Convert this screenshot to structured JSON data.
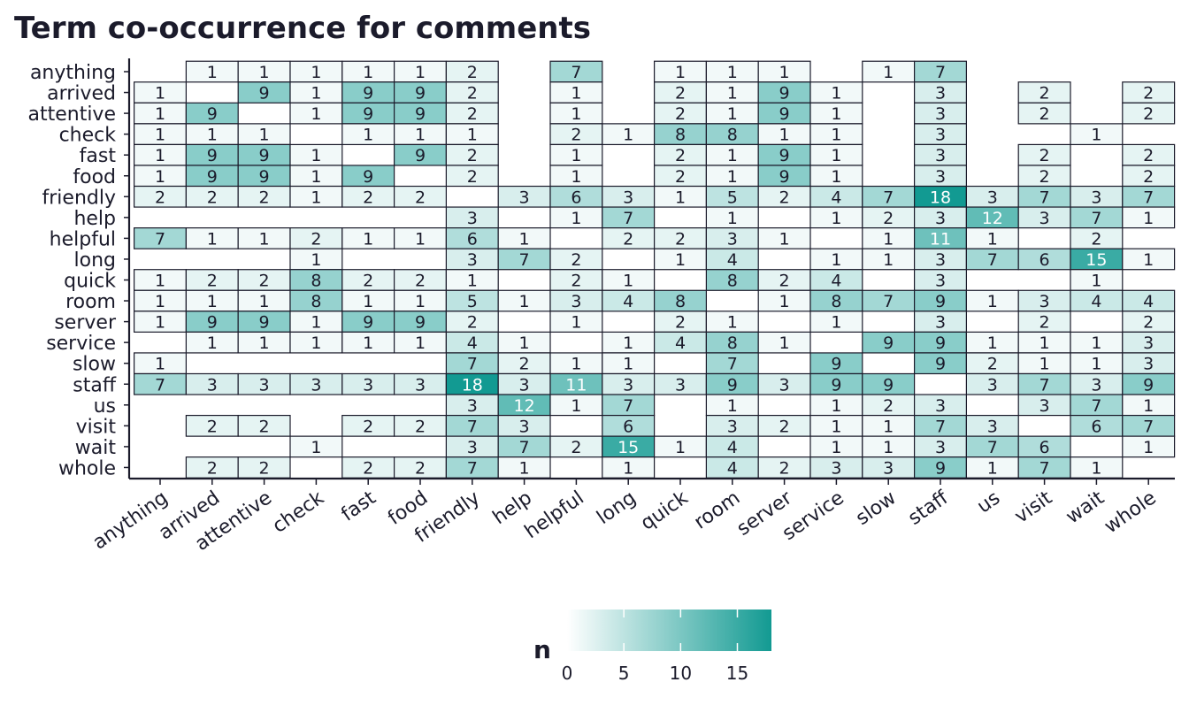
{
  "chart_data": {
    "type": "heatmap",
    "title": "Term co-occurrence for comments",
    "xlabel": "",
    "ylabel": "",
    "terms": [
      "anything",
      "arrived",
      "attentive",
      "check",
      "fast",
      "food",
      "friendly",
      "help",
      "helpful",
      "long",
      "quick",
      "room",
      "server",
      "service",
      "slow",
      "staff",
      "us",
      "visit",
      "wait",
      "whole"
    ],
    "matrix": [
      [
        null,
        1,
        1,
        1,
        1,
        1,
        2,
        null,
        7,
        null,
        1,
        1,
        1,
        null,
        1,
        7,
        null,
        null,
        null,
        null
      ],
      [
        1,
        null,
        9,
        1,
        9,
        9,
        2,
        null,
        1,
        null,
        2,
        1,
        9,
        1,
        null,
        3,
        null,
        2,
        null,
        2
      ],
      [
        1,
        9,
        null,
        1,
        9,
        9,
        2,
        null,
        1,
        null,
        2,
        1,
        9,
        1,
        null,
        3,
        null,
        2,
        null,
        2
      ],
      [
        1,
        1,
        1,
        null,
        1,
        1,
        1,
        null,
        2,
        1,
        8,
        8,
        1,
        1,
        null,
        3,
        null,
        null,
        1,
        null
      ],
      [
        1,
        9,
        9,
        1,
        null,
        9,
        2,
        null,
        1,
        null,
        2,
        1,
        9,
        1,
        null,
        3,
        null,
        2,
        null,
        2
      ],
      [
        1,
        9,
        9,
        1,
        9,
        null,
        2,
        null,
        1,
        null,
        2,
        1,
        9,
        1,
        null,
        3,
        null,
        2,
        null,
        2
      ],
      [
        2,
        2,
        2,
        1,
        2,
        2,
        null,
        3,
        6,
        3,
        1,
        5,
        2,
        4,
        7,
        18,
        3,
        7,
        3,
        7
      ],
      [
        null,
        null,
        null,
        null,
        null,
        null,
        3,
        null,
        1,
        7,
        null,
        1,
        null,
        1,
        2,
        3,
        12,
        3,
        7,
        1
      ],
      [
        7,
        1,
        1,
        2,
        1,
        1,
        6,
        1,
        null,
        2,
        2,
        3,
        1,
        null,
        1,
        11,
        1,
        null,
        2,
        null
      ],
      [
        null,
        null,
        null,
        1,
        null,
        null,
        3,
        7,
        2,
        null,
        1,
        4,
        null,
        1,
        1,
        3,
        7,
        6,
        15,
        1
      ],
      [
        1,
        2,
        2,
        8,
        2,
        2,
        1,
        null,
        2,
        1,
        null,
        8,
        2,
        4,
        null,
        3,
        null,
        null,
        1,
        null
      ],
      [
        1,
        1,
        1,
        8,
        1,
        1,
        5,
        1,
        3,
        4,
        8,
        null,
        1,
        8,
        7,
        9,
        1,
        3,
        4,
        4
      ],
      [
        1,
        9,
        9,
        1,
        9,
        9,
        2,
        null,
        1,
        null,
        2,
        1,
        null,
        1,
        null,
        3,
        null,
        2,
        null,
        2
      ],
      [
        null,
        1,
        1,
        1,
        1,
        1,
        4,
        1,
        null,
        1,
        4,
        8,
        1,
        null,
        9,
        9,
        1,
        1,
        1,
        3
      ],
      [
        1,
        null,
        null,
        null,
        null,
        null,
        7,
        2,
        1,
        1,
        null,
        7,
        null,
        9,
        null,
        9,
        2,
        1,
        1,
        3
      ],
      [
        7,
        3,
        3,
        3,
        3,
        3,
        18,
        3,
        11,
        3,
        3,
        9,
        3,
        9,
        9,
        null,
        3,
        7,
        3,
        9
      ],
      [
        null,
        null,
        null,
        null,
        null,
        null,
        3,
        12,
        1,
        7,
        null,
        1,
        null,
        1,
        2,
        3,
        null,
        3,
        7,
        1
      ],
      [
        null,
        2,
        2,
        null,
        2,
        2,
        7,
        3,
        null,
        6,
        null,
        3,
        2,
        1,
        1,
        7,
        3,
        null,
        6,
        7
      ],
      [
        null,
        null,
        null,
        1,
        null,
        null,
        3,
        7,
        2,
        15,
        1,
        4,
        null,
        1,
        1,
        3,
        7,
        6,
        null,
        1
      ],
      [
        null,
        2,
        2,
        null,
        2,
        2,
        7,
        1,
        null,
        1,
        null,
        4,
        2,
        3,
        3,
        9,
        1,
        7,
        1,
        null
      ]
    ],
    "color_scale": {
      "low": "#ffffff",
      "high": "#129a92",
      "min": 0,
      "max": 18
    },
    "legend": {
      "title": "n",
      "ticks": [
        0,
        5,
        10,
        15
      ],
      "placement": "bottom"
    },
    "grid": false
  }
}
